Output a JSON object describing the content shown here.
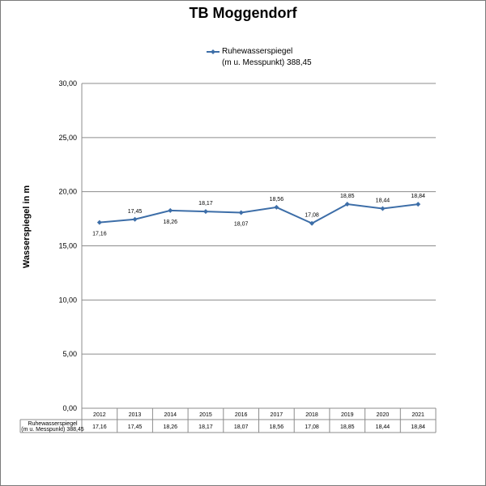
{
  "chart_data": {
    "type": "line",
    "title": "TB Moggendorf",
    "ylabel": "Wasserspiegel in m",
    "xlabel": "",
    "ylim": [
      0,
      30
    ],
    "yticks": [
      "0,00",
      "5,00",
      "10,00",
      "15,00",
      "20,00",
      "25,00",
      "30,00"
    ],
    "yticks_values": [
      0,
      5,
      10,
      15,
      20,
      25,
      30
    ],
    "grid": true,
    "legend": "top",
    "categories": [
      "2012",
      "2013",
      "2014",
      "2015",
      "2016",
      "2017",
      "2018",
      "2019",
      "2020",
      "2021"
    ],
    "series": [
      {
        "name": "Ruhewasserspiegel (m u. Messpunkt) 388,45",
        "legend_line1": "Ruhewasserspiegel",
        "legend_line2": "(m u. Messpunkt) 388,45",
        "values": [
          17.16,
          17.45,
          18.26,
          18.17,
          18.07,
          18.56,
          17.08,
          18.85,
          18.44,
          18.84
        ],
        "labels": [
          "17,16",
          "17,45",
          "18,26",
          "18,17",
          "18,07",
          "18,56",
          "17,08",
          "18,85",
          "18,44",
          "18,84"
        ],
        "label_pos": [
          "below",
          "above",
          "below",
          "above",
          "below",
          "above",
          "above",
          "above",
          "above",
          "above"
        ],
        "color": "#3d6ea8"
      }
    ],
    "data_table": true
  }
}
